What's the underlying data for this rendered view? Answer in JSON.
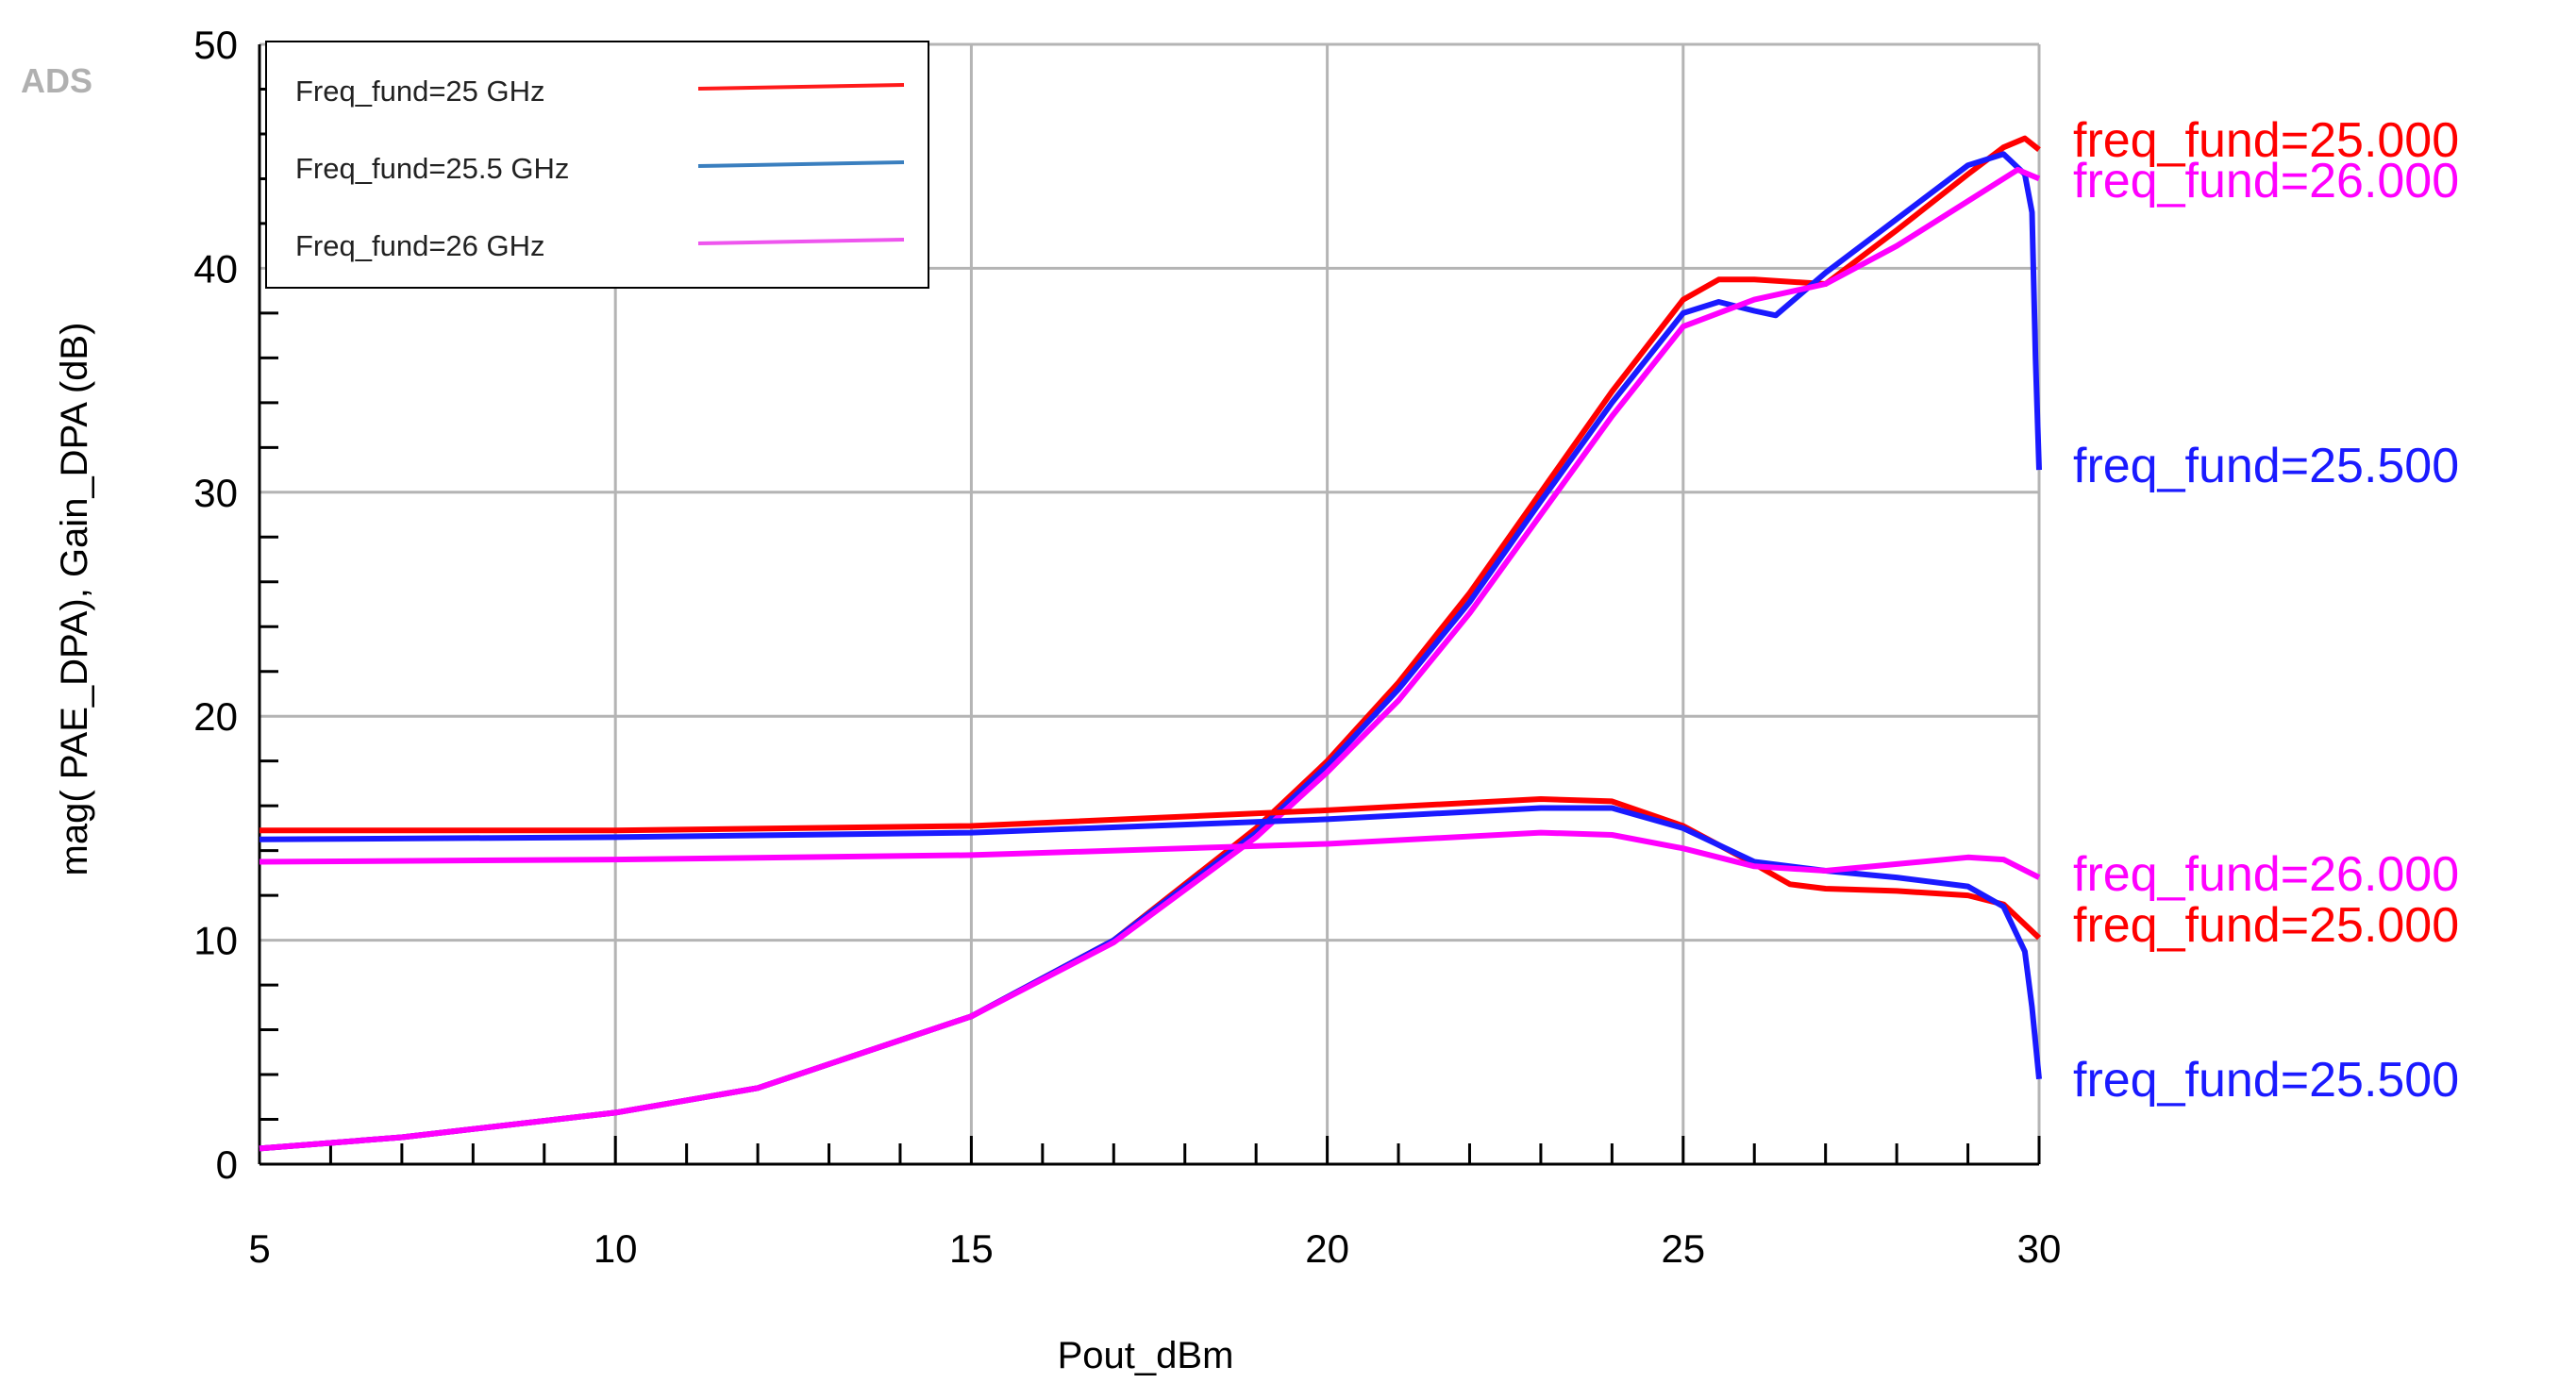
{
  "chart_data": {
    "type": "line",
    "logo": "ADS",
    "x_label": "Pout_dBm",
    "y_label": "mag( PAE_DPA), Gain_DPA (dB)",
    "xlim": [
      5,
      30
    ],
    "ylim": [
      0,
      50
    ],
    "xticks": [
      5,
      10,
      15,
      20,
      25,
      30
    ],
    "yticks": [
      0,
      10,
      20,
      30,
      40,
      50
    ],
    "grid": true,
    "legend_position": "upper-left",
    "legend": [
      {
        "name": "Freq_fund=25 GHz",
        "color": "#ff1a1a"
      },
      {
        "name": "Freq_fund=25.5 GHz",
        "color": "#3a7fbf"
      },
      {
        "name": "Freq_fund=26 GHz",
        "color": "#ee55ee"
      }
    ],
    "series": [
      {
        "label": "freq_fund=25.000",
        "color": "#ff0000",
        "x": [
          5,
          7,
          10,
          12,
          15,
          17,
          19,
          20,
          21,
          22,
          23,
          24,
          25,
          25.5,
          26,
          27,
          28,
          29,
          29.5,
          29.8,
          30
        ],
        "values": [
          0.7,
          1.2,
          2.3,
          3.4,
          6.6,
          10,
          15,
          18,
          21.5,
          25.5,
          30,
          34.5,
          38.6,
          39.5,
          39.5,
          39.3,
          41.7,
          44.2,
          45.4,
          45.8,
          45.3
        ]
      },
      {
        "label": "freq_fund=25.500",
        "color": "#1a1aff",
        "x": [
          5,
          7,
          10,
          12,
          15,
          17,
          19,
          20,
          21,
          22,
          23,
          24,
          25,
          25.5,
          26,
          26.3,
          27,
          28,
          29,
          29.5,
          29.8,
          29.9,
          29.95,
          30
        ],
        "values": [
          0.7,
          1.2,
          2.3,
          3.4,
          6.6,
          10,
          14.8,
          17.8,
          21.2,
          25.1,
          29.6,
          34,
          38,
          38.5,
          38.1,
          37.9,
          39.8,
          42.2,
          44.6,
          45.1,
          44.2,
          42.5,
          36,
          31
        ]
      },
      {
        "label": "freq_fund=26.000",
        "color": "#ff00ff",
        "x": [
          5,
          7,
          10,
          12,
          15,
          17,
          19,
          20,
          21,
          22,
          23,
          24,
          25,
          26,
          27,
          28,
          29,
          29.7,
          30
        ],
        "values": [
          0.7,
          1.2,
          2.3,
          3.4,
          6.6,
          9.9,
          14.6,
          17.5,
          20.7,
          24.6,
          29,
          33.4,
          37.4,
          38.6,
          39.3,
          41,
          43,
          44.4,
          44
        ]
      },
      {
        "label": "freq_fund=25.000",
        "color": "#ff0000",
        "x": [
          5,
          10,
          15,
          20,
          23,
          24,
          25,
          26,
          26.5,
          27,
          28,
          29,
          29.5,
          30
        ],
        "values": [
          14.9,
          14.9,
          15.1,
          15.8,
          16.3,
          16.2,
          15.1,
          13.4,
          12.5,
          12.3,
          12.2,
          12,
          11.6,
          10.1
        ]
      },
      {
        "label": "freq_fund=25.500",
        "color": "#1a1aff",
        "x": [
          5,
          10,
          15,
          20,
          23,
          24,
          25,
          26,
          27,
          28,
          29,
          29.5,
          29.8,
          29.9,
          30
        ],
        "values": [
          14.5,
          14.6,
          14.8,
          15.4,
          15.9,
          15.9,
          15,
          13.5,
          13.1,
          12.8,
          12.4,
          11.5,
          9.5,
          7,
          3.8
        ]
      },
      {
        "label": "freq_fund=26.000",
        "color": "#ff00ff",
        "x": [
          5,
          10,
          15,
          20,
          23,
          24,
          25,
          26,
          27,
          28,
          29,
          29.5,
          30
        ],
        "values": [
          13.5,
          13.6,
          13.8,
          14.3,
          14.8,
          14.7,
          14.1,
          13.3,
          13.1,
          13.4,
          13.7,
          13.6,
          12.8
        ]
      }
    ]
  }
}
